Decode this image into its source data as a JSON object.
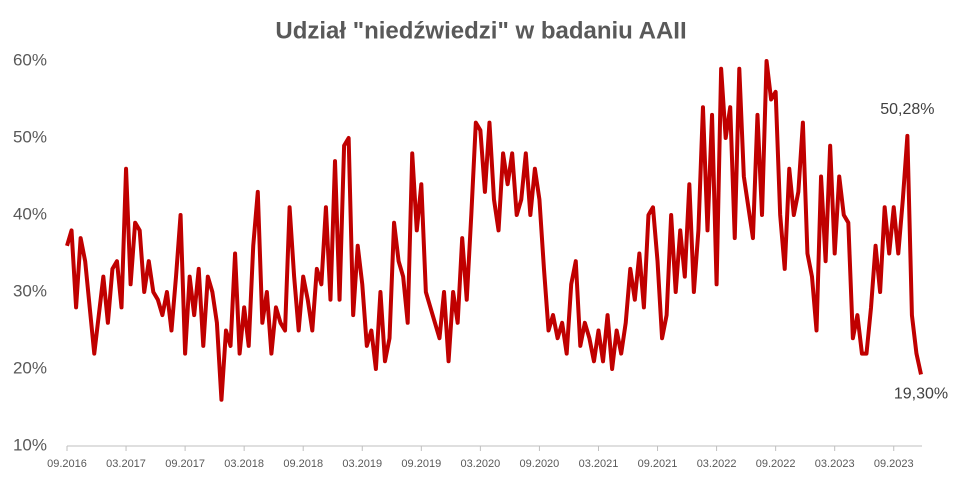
{
  "chart_data": {
    "type": "line",
    "title": "Udział \"niedźwiedzi\" w badaniu AAII",
    "color": "#c00000",
    "ylim": [
      10,
      60
    ],
    "yticks": [
      {
        "value": 10,
        "label": "10%"
      },
      {
        "value": 20,
        "label": "20%"
      },
      {
        "value": 30,
        "label": "30%"
      },
      {
        "value": 40,
        "label": "40%"
      },
      {
        "value": 50,
        "label": "50%"
      },
      {
        "value": 60,
        "label": "60%"
      }
    ],
    "grid": false,
    "categories": [
      "09.2016",
      null,
      null,
      null,
      null,
      null,
      null,
      null,
      null,
      null,
      null,
      null,
      null,
      "03.2017",
      null,
      null,
      null,
      null,
      null,
      null,
      null,
      null,
      null,
      null,
      null,
      null,
      "09.2017",
      null,
      null,
      null,
      null,
      null,
      null,
      null,
      null,
      null,
      null,
      null,
      null,
      "03.2018",
      null,
      null,
      null,
      null,
      null,
      null,
      null,
      null,
      null,
      null,
      null,
      null,
      "09.2018",
      null,
      null,
      null,
      null,
      null,
      null,
      null,
      null,
      null,
      null,
      null,
      null,
      "03.2019",
      null,
      null,
      null,
      null,
      null,
      null,
      null,
      null,
      null,
      null,
      null,
      null,
      "09.2019",
      null,
      null,
      null,
      null,
      null,
      null,
      null,
      null,
      null,
      null,
      null,
      null,
      "03.2020",
      null,
      null,
      null,
      null,
      null,
      null,
      null,
      null,
      null,
      null,
      null,
      null,
      "09.2020",
      null,
      null,
      null,
      null,
      null,
      null,
      null,
      null,
      null,
      null,
      null,
      null,
      "03.2021",
      null,
      null,
      null,
      null,
      null,
      null,
      null,
      null,
      null,
      null,
      null,
      null,
      "09.2021",
      null,
      null,
      null,
      null,
      null,
      null,
      null,
      null,
      null,
      null,
      null,
      null,
      "03.2022",
      null,
      null,
      null,
      null,
      null,
      null,
      null,
      null,
      null,
      null,
      null,
      null,
      "09.2022",
      null,
      null,
      null,
      null,
      null,
      null,
      null,
      null,
      null,
      null,
      null,
      null,
      "03.2023",
      null,
      null,
      null,
      null,
      null,
      null,
      null,
      null,
      null,
      null,
      null,
      null,
      "09.2023",
      null,
      null,
      null,
      null,
      null,
      null
    ],
    "values": [
      36,
      38,
      28,
      37,
      34,
      28,
      22,
      27,
      32,
      26,
      33,
      34,
      28,
      46,
      31,
      39,
      38,
      30,
      34,
      30,
      29,
      27,
      30,
      25,
      32,
      40,
      22,
      32,
      27,
      33,
      23,
      32,
      30,
      26,
      16,
      25,
      23,
      35,
      22,
      28,
      23,
      36,
      43,
      26,
      30,
      22,
      28,
      26,
      25,
      41,
      32,
      25,
      32,
      29,
      25,
      33,
      31,
      41,
      29,
      47,
      29,
      49,
      50,
      27,
      36,
      31,
      23,
      25,
      20,
      30,
      21,
      24,
      39,
      34,
      32,
      26,
      48,
      38,
      44,
      30,
      28,
      26,
      24,
      30,
      21,
      30,
      26,
      37,
      29,
      40,
      52,
      51,
      43,
      52,
      42,
      38,
      48,
      44,
      48,
      40,
      42,
      48,
      40,
      46,
      42,
      33,
      25,
      27,
      24,
      26,
      22,
      31,
      34,
      23,
      26,
      24,
      21,
      25,
      21,
      27,
      20,
      25,
      22,
      26,
      33,
      29,
      35,
      28,
      40,
      41,
      34,
      24,
      27,
      40,
      30,
      38,
      32,
      44,
      30,
      38,
      54,
      38,
      53,
      31,
      59,
      50,
      54,
      37,
      59,
      45,
      41,
      37,
      53,
      40,
      60,
      55,
      56,
      40,
      33,
      46,
      40,
      43,
      52,
      35,
      32,
      25,
      45,
      34,
      49,
      35,
      45,
      40,
      39,
      24,
      27,
      22,
      22,
      28,
      36,
      30,
      41,
      35,
      41,
      35,
      42,
      50.28,
      27,
      22,
      19.3
    ],
    "value_labels": [
      null,
      null,
      null,
      null,
      null,
      null,
      null,
      null,
      null,
      null,
      null,
      null,
      null,
      null,
      null,
      null,
      null,
      null,
      null,
      null,
      null,
      null,
      null,
      null,
      null,
      null,
      null,
      null,
      null,
      null,
      null,
      null,
      null,
      null,
      null,
      null,
      null,
      null,
      null,
      null,
      null,
      null,
      null,
      null,
      null,
      null,
      null,
      null,
      null,
      null,
      null,
      null,
      null,
      null,
      null,
      null,
      null,
      null,
      null,
      null,
      null,
      null,
      null,
      null,
      null,
      null,
      null,
      null,
      null,
      null,
      null,
      null,
      null,
      null,
      null,
      null,
      null,
      null,
      null,
      null,
      null,
      null,
      null,
      null,
      null,
      null,
      null,
      null,
      null,
      null,
      null,
      null,
      null,
      null,
      null,
      null,
      null,
      null,
      null,
      null,
      null,
      null,
      null,
      null,
      null,
      null,
      null,
      null,
      null,
      null,
      null,
      null,
      null,
      null,
      null,
      null,
      null,
      null,
      null,
      null,
      null,
      null,
      null,
      null,
      null,
      null,
      null,
      null,
      null,
      null,
      null,
      null,
      null,
      null,
      null,
      null,
      null,
      null,
      null,
      null,
      null,
      null,
      null,
      null,
      null,
      null,
      null,
      null,
      null,
      null,
      null,
      null,
      null,
      null,
      null,
      null,
      null,
      null,
      null,
      null,
      null,
      null,
      null,
      null,
      null,
      null,
      null,
      null,
      null,
      null,
      null,
      null,
      null,
      null,
      null,
      null,
      null,
      null,
      null,
      null,
      null,
      null,
      null,
      null,
      null,
      "50,28%",
      null,
      null,
      "19,30%"
    ]
  }
}
